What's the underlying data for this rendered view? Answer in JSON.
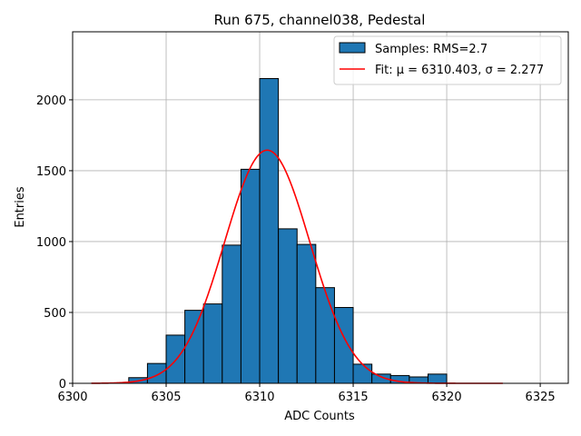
{
  "chart_data": {
    "type": "histogram",
    "title": "Run 675, channel038, Pedestal",
    "xlabel": "ADC Counts",
    "ylabel": "Entries",
    "xlim": [
      6300,
      6326.5
    ],
    "ylim": [
      0,
      2480
    ],
    "xticks": [
      6300,
      6305,
      6310,
      6315,
      6320,
      6325
    ],
    "yticks": [
      0,
      500,
      1000,
      1500,
      2000
    ],
    "grid": true,
    "legend_location": "top-right",
    "bin_edges": [
      6303,
      6304,
      6305,
      6306,
      6307,
      6308,
      6309,
      6310,
      6311,
      6312,
      6313,
      6314,
      6315,
      6316,
      6317,
      6318,
      6319,
      6320
    ],
    "bin_counts": [
      40,
      140,
      340,
      515,
      560,
      975,
      1510,
      2150,
      1090,
      980,
      675,
      535,
      135,
      65,
      55,
      45,
      65
    ],
    "bar_color": "#1f77b4",
    "fit": {
      "mu": 6310.403,
      "sigma": 2.277,
      "peak": 1645,
      "x_range": [
        6301,
        6323
      ],
      "color": "#ff0000"
    },
    "legend": [
      {
        "label": "Samples: RMS=2.7",
        "kind": "patch",
        "color": "#1f77b4"
      },
      {
        "label": "Fit: μ = 6310.403, σ = 2.277",
        "kind": "line",
        "color": "#ff0000"
      }
    ]
  }
}
